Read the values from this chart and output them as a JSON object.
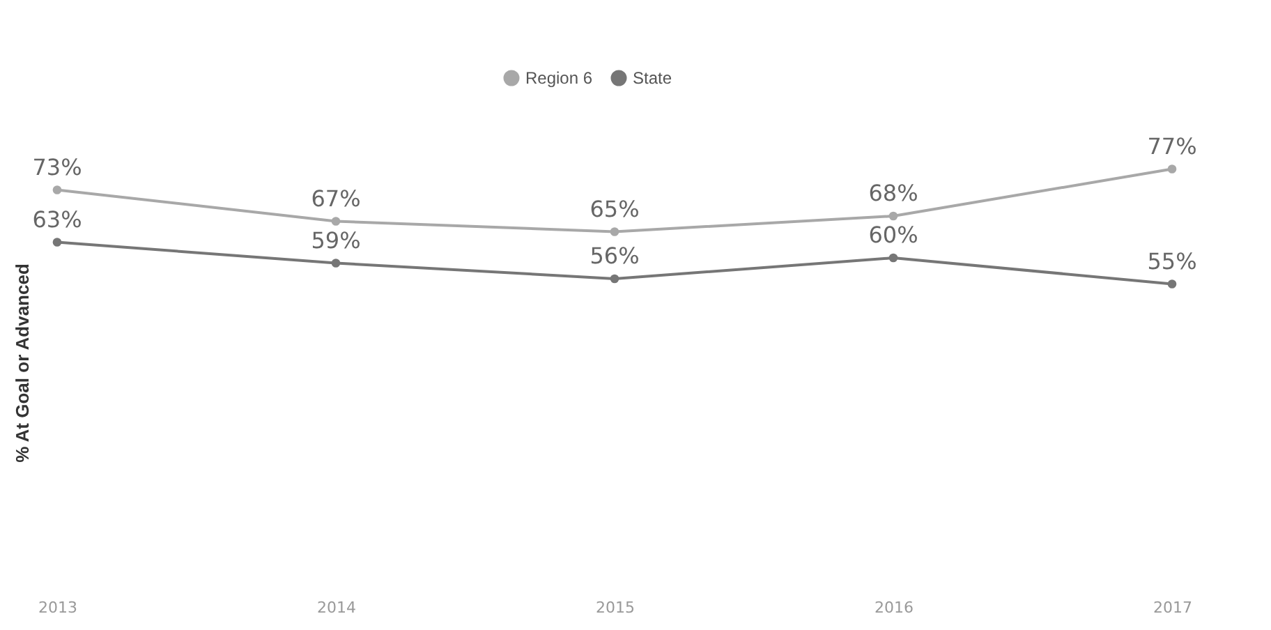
{
  "chart_data": {
    "type": "line",
    "ylabel": "% At Goal or Advanced",
    "categories": [
      "2013",
      "2014",
      "2015",
      "2016",
      "2017"
    ],
    "tick_labels": "x",
    "grid": false,
    "legend": "top",
    "marker": "circle",
    "line_style": "solid",
    "series": [
      {
        "name": "Region 6",
        "color": "#a8a8a8",
        "values": [
          73,
          67,
          65,
          68,
          77
        ],
        "value_labels": [
          "73%",
          "67%",
          "65%",
          "68%",
          "77%"
        ]
      },
      {
        "name": "State",
        "color": "#767676",
        "values": [
          63,
          59,
          56,
          60,
          55
        ],
        "value_labels": [
          "63%",
          "59%",
          "56%",
          "60%",
          "55%"
        ]
      }
    ]
  }
}
